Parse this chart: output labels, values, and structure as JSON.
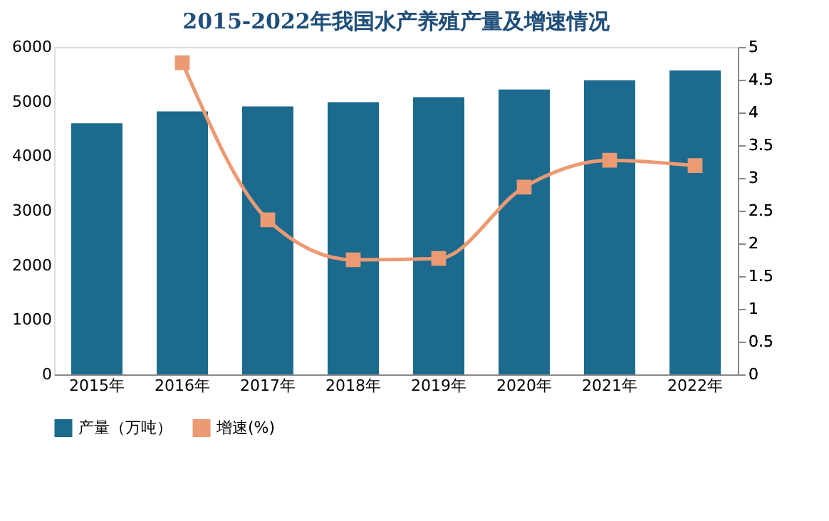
{
  "chart_data": {
    "type": "bar",
    "title": "2015-2022年我国水产养殖产量及增速情况",
    "categories": [
      "2015年",
      "2016年",
      "2017年",
      "2018年",
      "2019年",
      "2020年",
      "2021年",
      "2022年"
    ],
    "series": [
      {
        "name": "产量（万吨）",
        "color": "#1c6a8d",
        "values": [
          4600,
          4820,
          4910,
          4990,
          5080,
          5220,
          5390,
          5570
        ]
      },
      {
        "name": "增速(%)",
        "type": "line",
        "axis": "y2",
        "color": "#eb9a74",
        "values": [
          null,
          4.76,
          2.36,
          1.75,
          1.77,
          2.86,
          3.27,
          3.19
        ]
      }
    ],
    "ylim": [
      0,
      6000
    ],
    "yticks": [
      0,
      1000,
      2000,
      3000,
      4000,
      5000,
      6000
    ],
    "y2lim": [
      0,
      5
    ],
    "y2ticks": [
      0,
      0.5,
      1,
      1.5,
      2,
      2.5,
      3,
      3.5,
      4,
      4.5,
      5
    ],
    "marker": "square",
    "legend": "bottom",
    "grid": false
  }
}
